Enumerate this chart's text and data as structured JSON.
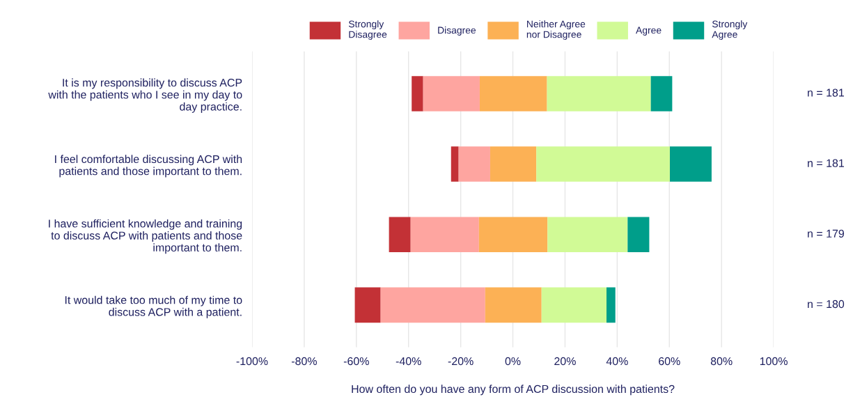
{
  "chart_data": {
    "type": "bar",
    "orientation": "horizontal",
    "categories": [
      "It is my responsibility to discuss ACP\nwith the patients who I see in my day to\nday practice.",
      "I feel comfortable discussing ACP with\npatients and those important to them.",
      "I have sufficient knowledge and training\nto discuss ACP with patients and those\nimportant to them.",
      "It would take too much of my time to\ndiscuss ACP with a patient."
    ],
    "series": [
      {
        "name": "Strongly\nDisagree",
        "color": "#c33136",
        "base": [
          -38.8,
          -23.7,
          -47.5,
          -60.6
        ],
        "values": [
          4.4,
          2.9,
          8.3,
          9.9
        ]
      },
      {
        "name": "Disagree",
        "color": "#fea5a0",
        "base": [
          -34.4,
          -20.8,
          -39.2,
          -50.7
        ],
        "values": [
          21.7,
          12.1,
          26.2,
          40.1
        ]
      },
      {
        "name": "Neither Agree\nnor Disagree",
        "color": "#fcb155",
        "base": [
          -12.7,
          -8.7,
          -13.0,
          -10.6
        ],
        "values": [
          25.8,
          17.7,
          26.3,
          21.6
        ]
      },
      {
        "name": "Agree",
        "color": "#d1fa96",
        "base": [
          13.1,
          9.0,
          13.3,
          11.0
        ],
        "values": [
          39.8,
          51.2,
          30.7,
          24.9
        ]
      },
      {
        "name": "Strongly\nAgree",
        "color": "#009e8a",
        "base": [
          52.9,
          60.2,
          44.0,
          35.9
        ],
        "values": [
          8.2,
          16.0,
          8.3,
          3.4
        ]
      }
    ],
    "xlim": [
      -100,
      100
    ],
    "xticks": [
      {
        "value": -100,
        "label": "-100%"
      },
      {
        "value": -80,
        "label": "-80%"
      },
      {
        "value": -60,
        "label": "-60%"
      },
      {
        "value": -40,
        "label": "-40%"
      },
      {
        "value": -20,
        "label": "-20%"
      },
      {
        "value": 0,
        "label": "0%"
      },
      {
        "value": 20,
        "label": "20%"
      },
      {
        "value": 40,
        "label": "40%"
      },
      {
        "value": 60,
        "label": "60%"
      },
      {
        "value": 80,
        "label": "80%"
      },
      {
        "value": 100,
        "label": "100%"
      }
    ],
    "xlabel": "How often do you have any form of ACP discussion with patients?",
    "annotations": [
      "n = 181",
      "n = 181",
      "n = 179",
      "n = 180"
    ],
    "grid": "x",
    "legend": "top"
  }
}
